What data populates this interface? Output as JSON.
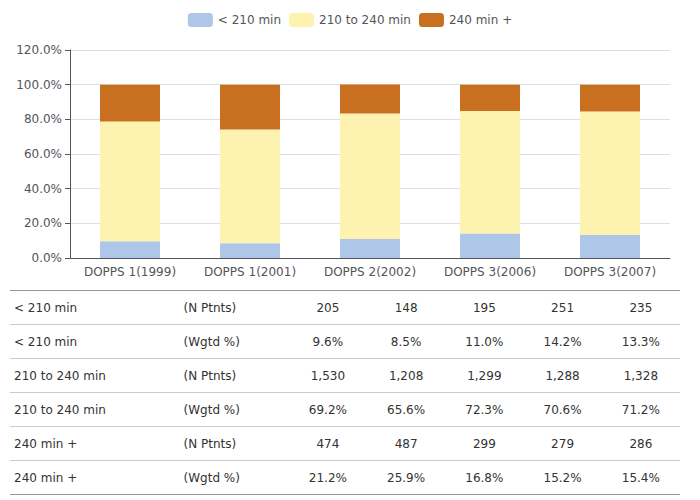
{
  "chart_data": {
    "type": "bar",
    "stacked": true,
    "categories": [
      "DOPPS 1(1999)",
      "DOPPS 1(2001)",
      "DOPPS 2(2002)",
      "DOPPS 3(2006)",
      "DOPPS 3(2007)"
    ],
    "series": [
      {
        "name": "< 210 min",
        "color": "#aec6e8",
        "values": [
          9.6,
          8.5,
          11.0,
          14.2,
          13.3
        ]
      },
      {
        "name": "210 to 240 min",
        "color": "#fdf2b0",
        "values": [
          69.2,
          65.6,
          72.3,
          70.6,
          71.2
        ]
      },
      {
        "name": "240 min +",
        "color": "#c87020",
        "values": [
          21.2,
          25.9,
          16.8,
          15.2,
          15.4
        ]
      }
    ],
    "ylim": [
      0,
      120
    ],
    "yticks": [
      {
        "value": 0,
        "label": "0.0%"
      },
      {
        "value": 20,
        "label": "20.0%"
      },
      {
        "value": 40,
        "label": "40.0%"
      },
      {
        "value": 60,
        "label": "60.0%"
      },
      {
        "value": 80,
        "label": "80.0%"
      },
      {
        "value": 100,
        "label": "100.0%"
      },
      {
        "value": 120,
        "label": "120.0%"
      }
    ],
    "grid": true,
    "legend": "top",
    "table": {
      "row_labels": [
        [
          "< 210 min",
          "(N Ptnts)"
        ],
        [
          "< 210 min",
          "(Wgtd %)"
        ],
        [
          "210 to 240 min",
          "(N Ptnts)"
        ],
        [
          "210 to 240 min",
          "(Wgtd %)"
        ],
        [
          "240 min +",
          "(N Ptnts)"
        ],
        [
          "240 min +",
          "(Wgtd %)"
        ]
      ],
      "rows": [
        [
          "205",
          "148",
          "195",
          "251",
          "235"
        ],
        [
          "9.6%",
          "8.5%",
          "11.0%",
          "14.2%",
          "13.3%"
        ],
        [
          "1,530",
          "1,208",
          "1,299",
          "1,288",
          "1,328"
        ],
        [
          "69.2%",
          "65.6%",
          "72.3%",
          "70.6%",
          "71.2%"
        ],
        [
          "474",
          "487",
          "299",
          "279",
          "286"
        ],
        [
          "21.2%",
          "25.9%",
          "16.8%",
          "15.2%",
          "15.4%"
        ]
      ]
    }
  }
}
